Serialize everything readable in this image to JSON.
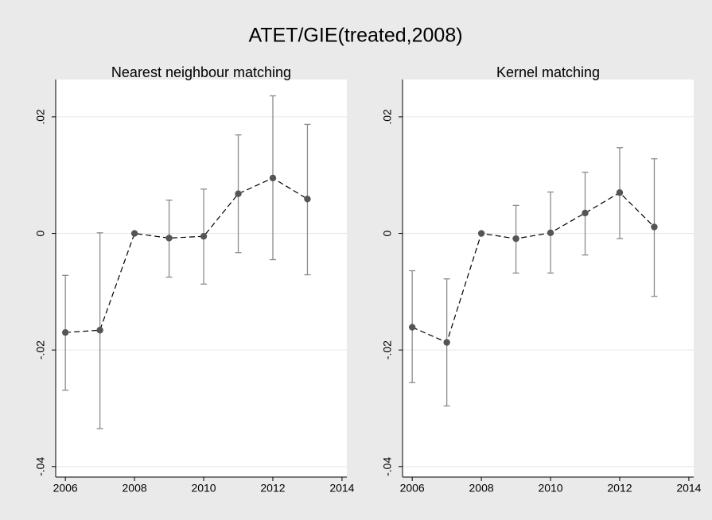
{
  "title": "ATET/GIE(treated,2008)",
  "chart_data": [
    {
      "type": "errorbar",
      "title": "Nearest neighbour matching",
      "x": [
        2006,
        2007,
        2008,
        2009,
        2010,
        2011,
        2012,
        2013
      ],
      "values": [
        -0.017,
        -0.0166,
        0,
        -0.0008,
        -0.0005,
        0.0068,
        0.0095,
        0.0059
      ],
      "lower": [
        -0.0269,
        -0.0335,
        null,
        -0.0075,
        -0.0087,
        -0.0033,
        -0.0045,
        -0.0071
      ],
      "upper": [
        -0.0072,
        0.0001,
        null,
        0.0057,
        0.0076,
        0.0169,
        0.0236,
        0.0187
      ],
      "xlim": [
        2005.72,
        2014.14
      ],
      "xticks": [
        2006,
        2008,
        2010,
        2012,
        2014
      ],
      "ylim": [
        -0.0418,
        0.0264
      ],
      "yticks": [
        {
          "value": -0.04,
          "label": "-.04"
        },
        {
          "value": -0.02,
          "label": "-.02"
        },
        0,
        {
          "value": 0.02,
          "label": ".02"
        }
      ],
      "grid": true,
      "color": "#555555",
      "bar_color": "#8c8c8c",
      "line_color": "#000000"
    },
    {
      "type": "errorbar",
      "title": "Kernel matching",
      "x": [
        2006,
        2007,
        2008,
        2009,
        2010,
        2011,
        2012,
        2013
      ],
      "values": [
        -0.0161,
        -0.0187,
        0,
        -0.0009,
        0.0001,
        0.0035,
        0.007,
        0.0011
      ],
      "lower": [
        -0.0256,
        -0.0296,
        null,
        -0.0068,
        -0.0068,
        -0.0037,
        -0.0009,
        -0.0108
      ],
      "upper": [
        -0.0064,
        -0.0078,
        null,
        0.0048,
        0.0071,
        0.0105,
        0.0147,
        0.0128
      ],
      "xlim": [
        2005.72,
        2014.14
      ],
      "xticks": [
        2006,
        2008,
        2010,
        2012,
        2014
      ],
      "ylim": [
        -0.0418,
        0.0264
      ],
      "yticks": [
        {
          "value": -0.04,
          "label": "-.04"
        },
        {
          "value": -0.02,
          "label": "-.02"
        },
        0,
        {
          "value": 0.02,
          "label": ".02"
        }
      ],
      "grid": true,
      "color": "#555555",
      "bar_color": "#8c8c8c",
      "line_color": "#000000"
    }
  ]
}
